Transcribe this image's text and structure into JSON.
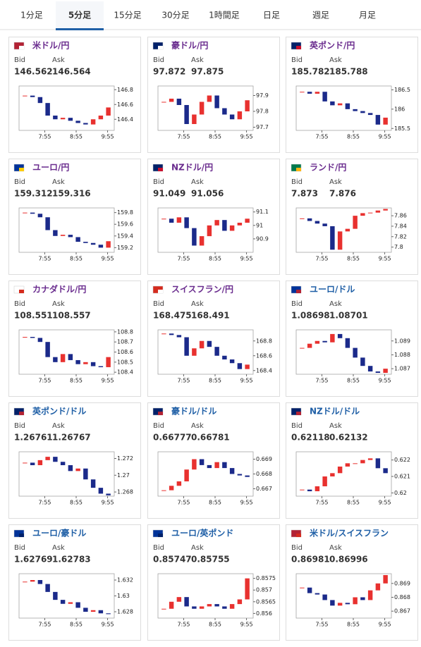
{
  "tabs": [
    "1分足",
    "5分足",
    "15分足",
    "30分足",
    "1時間足",
    "日足",
    "週足",
    "月足"
  ],
  "active_tab": 1,
  "bid_label": "Bid",
  "ask_label": "Ask",
  "tiles": [
    {
      "pair": "米ドル/円",
      "name_color": "#6a2c8e",
      "bid": "146.562",
      "ask": "146.564",
      "chart": {
        "type": "candlestick",
        "xticks": [
          "7:55",
          "8:55",
          "9:55"
        ],
        "ylim": [
          146.25,
          146.85
        ],
        "yticks": [
          146.8,
          146.6,
          146.4
        ],
        "values": [
          146.72,
          146.7,
          146.62,
          146.45,
          146.4,
          146.42,
          146.38,
          146.35,
          146.33,
          146.4,
          146.45,
          146.56
        ]
      }
    },
    {
      "pair": "豪ドル/円",
      "name_color": "#6a2c8e",
      "bid": "97.872",
      "ask": "97.875",
      "chart": {
        "type": "candlestick",
        "xticks": [
          "7:55",
          "8:55",
          "9:55"
        ],
        "ylim": [
          97.68,
          97.96
        ],
        "yticks": [
          97.9,
          97.8,
          97.7
        ],
        "values": [
          97.86,
          97.88,
          97.84,
          97.72,
          97.78,
          97.86,
          97.9,
          97.82,
          97.78,
          97.75,
          97.8,
          97.87
        ]
      }
    },
    {
      "pair": "英ポンド/円",
      "name_color": "#6a2c8e",
      "bid": "185.782",
      "ask": "185.788",
      "chart": {
        "type": "candlestick",
        "xticks": [
          "7:55",
          "8:55",
          "9:55"
        ],
        "ylim": [
          185.45,
          186.6
        ],
        "yticks": [
          186.5,
          186,
          185.5
        ],
        "values": [
          186.45,
          186.4,
          186.45,
          186.2,
          186.1,
          186.15,
          186,
          185.95,
          185.9,
          185.85,
          185.6,
          185.78
        ]
      }
    },
    {
      "pair": "ユーロ/円",
      "name_color": "#6a2c8e",
      "bid": "159.312",
      "ask": "159.316",
      "chart": {
        "type": "candlestick",
        "xticks": [
          "7:55",
          "8:55",
          "9:55"
        ],
        "ylim": [
          159.12,
          159.88
        ],
        "yticks": [
          159.8,
          159.6,
          159.4,
          159.2
        ],
        "values": [
          159.8,
          159.78,
          159.72,
          159.5,
          159.4,
          159.42,
          159.38,
          159.3,
          159.28,
          159.25,
          159.2,
          159.31
        ]
      }
    },
    {
      "pair": "NZドル/円",
      "name_color": "#6a2c8e",
      "bid": "91.049",
      "ask": "91.056",
      "chart": {
        "type": "candlestick",
        "xticks": [
          "7:55",
          "8:55",
          "9:55"
        ],
        "ylim": [
          90.8,
          91.13
        ],
        "yticks": [
          91.1,
          91,
          90.9
        ],
        "values": [
          91.05,
          91.02,
          91.06,
          90.98,
          90.85,
          90.92,
          91,
          91.04,
          90.96,
          91,
          91.02,
          91.05
        ]
      }
    },
    {
      "pair": "ランド/円",
      "name_color": "#6a2c8e",
      "bid": "7.873",
      "ask": "7.876",
      "chart": {
        "type": "candlestick",
        "xticks": [
          "7:55",
          "8:55",
          "9:55"
        ],
        "ylim": [
          7.79,
          7.875
        ],
        "yticks": [
          7.86,
          7.84,
          7.82,
          7.8
        ],
        "values": [
          7.855,
          7.85,
          7.845,
          7.84,
          7.795,
          7.83,
          7.835,
          7.86,
          7.865,
          7.866,
          7.87,
          7.873
        ]
      }
    },
    {
      "pair": "カナダドル/円",
      "name_color": "#6a2c8e",
      "bid": "108.551",
      "ask": "108.557",
      "chart": {
        "type": "candlestick",
        "xticks": [
          "7:55",
          "8:55",
          "9:55"
        ],
        "ylim": [
          108.38,
          108.82
        ],
        "yticks": [
          108.8,
          108.7,
          108.6,
          108.5,
          108.4
        ],
        "values": [
          108.75,
          108.74,
          108.7,
          108.55,
          108.5,
          108.58,
          108.52,
          108.48,
          108.5,
          108.46,
          108.45,
          108.55
        ]
      }
    },
    {
      "pair": "スイスフラン/円",
      "name_color": "#6a2c8e",
      "bid": "168.475",
      "ask": "168.491",
      "chart": {
        "type": "candlestick",
        "xticks": [
          "7:55",
          "8:55",
          "9:55"
        ],
        "ylim": [
          168.35,
          168.95
        ],
        "yticks": [
          168.8,
          168.6,
          168.4
        ],
        "values": [
          168.9,
          168.88,
          168.85,
          168.6,
          168.7,
          168.8,
          168.72,
          168.6,
          168.55,
          168.5,
          168.42,
          168.48
        ]
      }
    },
    {
      "pair": "ユーロ/ドル",
      "name_color": "#1f5fa6",
      "bid": "1.08698",
      "ask": "1.08701",
      "chart": {
        "type": "candlestick",
        "xticks": [
          "7:55",
          "8:55",
          "9:55"
        ],
        "ylim": [
          1.0866,
          1.0898
        ],
        "yticks": [
          1.089,
          1.088,
          1.087
        ],
        "values": [
          1.0885,
          1.0888,
          1.089,
          1.0889,
          1.0895,
          1.0892,
          1.0885,
          1.0878,
          1.0872,
          1.0868,
          1.0867,
          1.087
        ]
      }
    },
    {
      "pair": "英ポンド/ドル",
      "name_color": "#1f5fa6",
      "bid": "1.26761",
      "ask": "1.26767",
      "chart": {
        "type": "candlestick",
        "xticks": [
          "7:55",
          "8:55",
          "9:55"
        ],
        "ylim": [
          1.2675,
          1.2728
        ],
        "yticks": [
          1.272,
          1.27,
          1.268
        ],
        "values": [
          1.2715,
          1.2712,
          1.2718,
          1.2722,
          1.2716,
          1.2712,
          1.2705,
          1.2708,
          1.2695,
          1.2685,
          1.2678,
          1.2676
        ]
      }
    },
    {
      "pair": "豪ドル/ドル",
      "name_color": "#1f5fa6",
      "bid": "0.66777",
      "ask": "0.66781",
      "chart": {
        "type": "candlestick",
        "xticks": [
          "7:55",
          "8:55",
          "9:55"
        ],
        "ylim": [
          0.6665,
          0.6695
        ],
        "yticks": [
          0.669,
          0.668,
          0.667
        ],
        "values": [
          0.6669,
          0.6672,
          0.6675,
          0.6683,
          0.669,
          0.6686,
          0.6684,
          0.6688,
          0.6684,
          0.668,
          0.6679,
          0.6678
        ]
      }
    },
    {
      "pair": "NZドル/ドル",
      "name_color": "#1f5fa6",
      "bid": "0.62118",
      "ask": "0.62132",
      "chart": {
        "type": "candlestick",
        "xticks": [
          "7:55",
          "8:55",
          "9:55"
        ],
        "ylim": [
          0.6198,
          0.6225
        ],
        "yticks": [
          0.622,
          0.621,
          0.62
        ],
        "values": [
          0.6202,
          0.6201,
          0.6204,
          0.621,
          0.6212,
          0.6216,
          0.6218,
          0.6218,
          0.622,
          0.6221,
          0.6215,
          0.6212
        ]
      }
    },
    {
      "pair": "ユーロ/豪ドル",
      "name_color": "#1f5fa6",
      "bid": "1.62769",
      "ask": "1.62783",
      "chart": {
        "type": "candlestick",
        "xticks": [
          "7:55",
          "8:55",
          "9:55"
        ],
        "ylim": [
          1.6272,
          1.6328
        ],
        "yticks": [
          1.632,
          1.63,
          1.628
        ],
        "values": [
          1.6318,
          1.632,
          1.6315,
          1.6305,
          1.6295,
          1.629,
          1.6292,
          1.6285,
          1.628,
          1.6282,
          1.6278,
          1.6277
        ]
      }
    },
    {
      "pair": "ユーロ/英ポンド",
      "name_color": "#1f5fa6",
      "bid": "0.85747",
      "ask": "0.85755",
      "chart": {
        "type": "candlestick",
        "xticks": [
          "7:55",
          "8:55",
          "9:55"
        ],
        "ylim": [
          0.8558,
          0.8577
        ],
        "yticks": [
          0.8575,
          0.857,
          0.8565,
          0.856
        ],
        "values": [
          0.8562,
          0.8565,
          0.8567,
          0.8563,
          0.8562,
          0.8563,
          0.8564,
          0.8563,
          0.8562,
          0.8564,
          0.8566,
          0.8575
        ]
      }
    },
    {
      "pair": "米ドル/スイスフラン",
      "name_color": "#1f5fa6",
      "bid": "0.86981",
      "ask": "0.86996",
      "chart": {
        "type": "candlestick",
        "xticks": [
          "7:55",
          "8:55",
          "9:55"
        ],
        "ylim": [
          0.8665,
          0.8697
        ],
        "yticks": [
          0.869,
          0.868,
          0.867
        ],
        "values": [
          0.8687,
          0.8683,
          0.8682,
          0.8678,
          0.8674,
          0.8676,
          0.8675,
          0.868,
          0.8678,
          0.8685,
          0.869,
          0.8696
        ]
      }
    }
  ]
}
